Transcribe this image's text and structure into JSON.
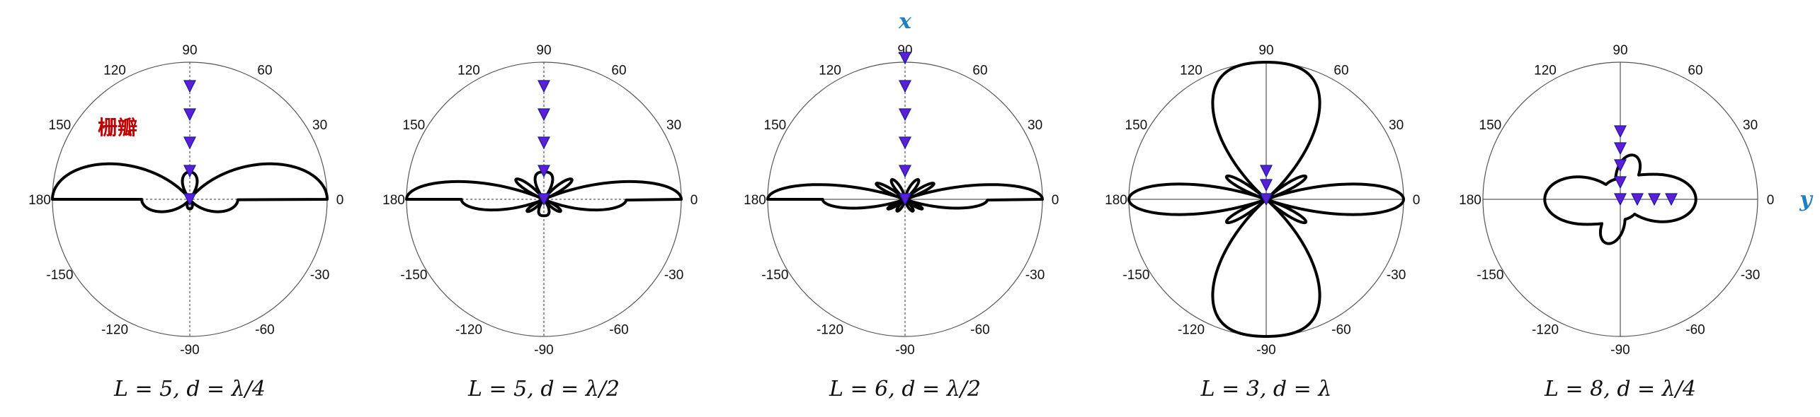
{
  "figure": {
    "axis_x_label": "x",
    "axis_y_label": "y",
    "lobe_annotation": "栅瓣",
    "colors": {
      "pattern": "#000000",
      "element": "#5b1fd6",
      "element_edge": "#1a1aa0",
      "axis_label": "#1f7fbf",
      "annotation": "#c00000"
    },
    "angle_ticks": [
      "90",
      "60",
      "30",
      "0",
      "-30",
      "-60",
      "-90",
      "-120",
      "-150",
      "180",
      "150",
      "120"
    ]
  },
  "chart_data": [
    {
      "type": "polar",
      "caption": "L = 5, d = λ/4",
      "L": 5,
      "d_over_lambda": 0.25,
      "axis_style": "dotted",
      "element_layout": "vertical",
      "element_offsets": [
        0,
        0.25,
        0.5,
        0.75,
        1.0
      ]
    },
    {
      "type": "polar",
      "caption": "L = 5, d = λ/2",
      "L": 5,
      "d_over_lambda": 0.5,
      "axis_style": "dotted",
      "element_layout": "vertical",
      "element_offsets": [
        0,
        0.5,
        1.0,
        1.5,
        2.0
      ]
    },
    {
      "type": "polar",
      "caption": "L = 6, d = λ/2",
      "L": 6,
      "d_over_lambda": 0.5,
      "axis_style": "mixed",
      "element_layout": "vertical",
      "element_offsets": [
        0,
        0.5,
        1.0,
        1.5,
        2.0,
        2.5
      ]
    },
    {
      "type": "polar",
      "caption": "L = 3, d = λ",
      "L": 3,
      "d_over_lambda": 1.0,
      "axis_style": "solid",
      "element_layout": "vertical",
      "element_offsets": [
        0,
        1.0,
        2.0
      ]
    },
    {
      "type": "polar",
      "caption": "L = 8, d = λ/4",
      "L": 8,
      "d_over_lambda": 0.25,
      "axis_style": "solid",
      "element_layout": "L-shape",
      "element_offsets": [
        0,
        0.25,
        0.5,
        0.75,
        1.0,
        0.25,
        0.5,
        0.75
      ]
    }
  ]
}
